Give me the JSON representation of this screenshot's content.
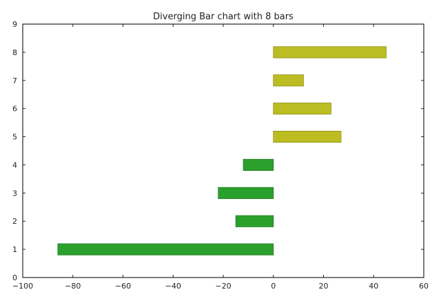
{
  "chart_data": {
    "type": "bar",
    "orientation": "horizontal",
    "title": "Diverging Bar chart with 8 bars",
    "xlabel": "",
    "ylabel": "",
    "xlim": [
      -100,
      60
    ],
    "ylim": [
      0,
      9
    ],
    "xticks": [
      -100,
      -80,
      -60,
      -40,
      -20,
      0,
      20,
      40,
      60
    ],
    "yticks": [
      0,
      1,
      2,
      3,
      4,
      5,
      6,
      7,
      8,
      9
    ],
    "xtick_labels": [
      "−100",
      "−80",
      "−60",
      "−40",
      "−20",
      "0",
      "20",
      "40",
      "60"
    ],
    "ytick_labels": [
      "0",
      "1",
      "2",
      "3",
      "4",
      "5",
      "6",
      "7",
      "8",
      "9"
    ],
    "categories": [
      1,
      2,
      3,
      4,
      5,
      6,
      7,
      8
    ],
    "values": [
      -86,
      -15,
      -22,
      -12,
      27,
      23,
      12,
      45
    ],
    "bar_height": 0.4,
    "grid": false,
    "colors": {
      "negative": "#2ca02c",
      "positive": "#bcbd22",
      "edge_negative": "#1f7a1f",
      "edge_positive": "#8e8f18",
      "axes": "#222222"
    }
  }
}
